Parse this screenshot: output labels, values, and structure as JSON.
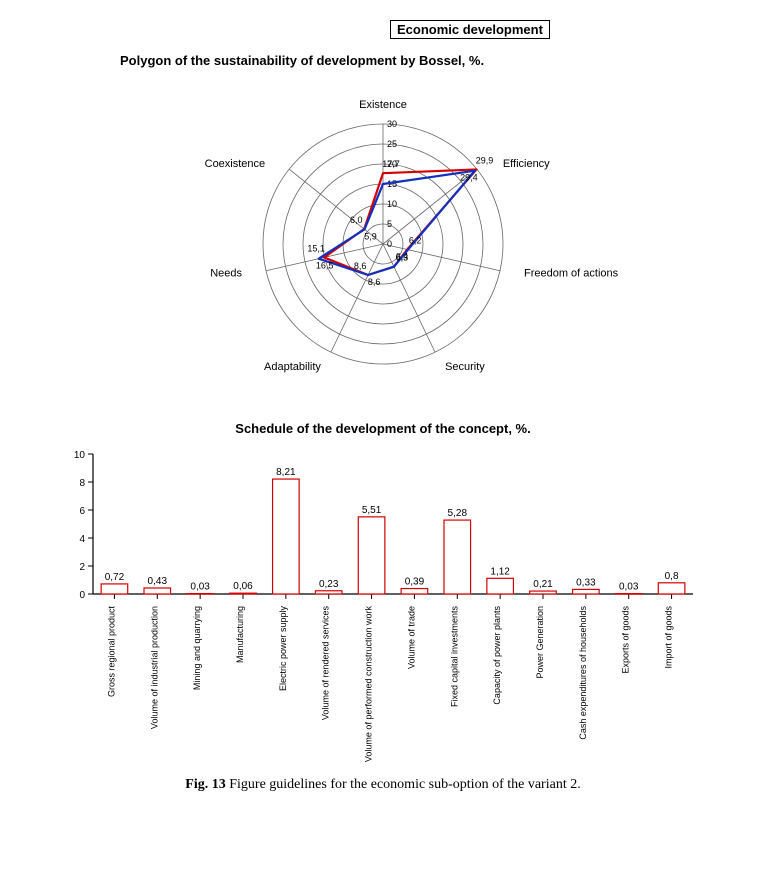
{
  "header_label": "Economic development",
  "radar": {
    "title": "Polygon of the sustainability of development by Bossel, %.",
    "type": "radar",
    "axes": [
      "Existence",
      "Efficiency",
      "Freedom of actions",
      "Security",
      "Adaptability",
      "Needs",
      "Coexistence"
    ],
    "rings": [
      0,
      5,
      10,
      15,
      20,
      25,
      30
    ],
    "max": 30,
    "series": [
      {
        "name": "series-red",
        "color": "#d40000",
        "width": 2.2,
        "values": [
          17.7,
          29.9,
          6.2,
          6.3,
          8.6,
          15.1,
          6.0
        ],
        "labels": [
          "17,7",
          "29,9",
          "6,2",
          "6,3",
          "8,6",
          "15,1",
          "6,0"
        ]
      },
      {
        "name": "series-blue",
        "color": "#1030c0",
        "width": 2.2,
        "values": [
          15.0,
          29.4,
          6.4,
          6.3,
          8.6,
          16.5,
          5.9
        ],
        "labels": [
          "",
          "29,4",
          "6,4",
          "",
          "8,6",
          "16,5",
          "5,9"
        ]
      }
    ],
    "axis_label_fontsize": 11,
    "tick_fontsize": 9,
    "value_label_fontsize": 9,
    "background_color": "#ffffff",
    "ring_color": "#666666",
    "spoke_color": "#666666"
  },
  "bar": {
    "title": "Schedule of the development of the concept, %.",
    "type": "bar",
    "categories": [
      "Gross regional product",
      "Volume of industrial production",
      "Mining and quarrying",
      "Manufacturing",
      "Electric power supply",
      "Volume of rendered services",
      "Volume of performed construction work",
      "Volume of trade",
      "Fixed capital investments",
      "Capacity of power plants",
      "Power Generation",
      "Cash expenditures of households",
      "Exports of goods",
      "Import of goods"
    ],
    "values": [
      0.72,
      0.43,
      0.03,
      0.06,
      8.21,
      0.23,
      5.51,
      0.39,
      5.28,
      1.12,
      0.21,
      0.33,
      0.03,
      0.8
    ],
    "value_labels": [
      "0,72",
      "0,43",
      "0,03",
      "0,06",
      "8,21",
      "0,23",
      "5,51",
      "0,39",
      "5,28",
      "1,12",
      "0,21",
      "0,33",
      "0,03",
      "0,8"
    ],
    "ylim": [
      0,
      10
    ],
    "yticks": [
      0,
      2,
      4,
      6,
      8,
      10
    ],
    "bar_fill": "#ffffff",
    "bar_stroke": "#d40000",
    "bar_stroke_width": 1.2,
    "axis_color": "#000000",
    "tick_color": "#000000",
    "label_fontsize": 9,
    "ytick_fontsize": 10,
    "value_label_fontsize": 10,
    "category_fontsize": 9
  },
  "caption_bold": "Fig. 13",
  "caption_rest": " Figure guidelines for the economic sub-option of the variant 2."
}
